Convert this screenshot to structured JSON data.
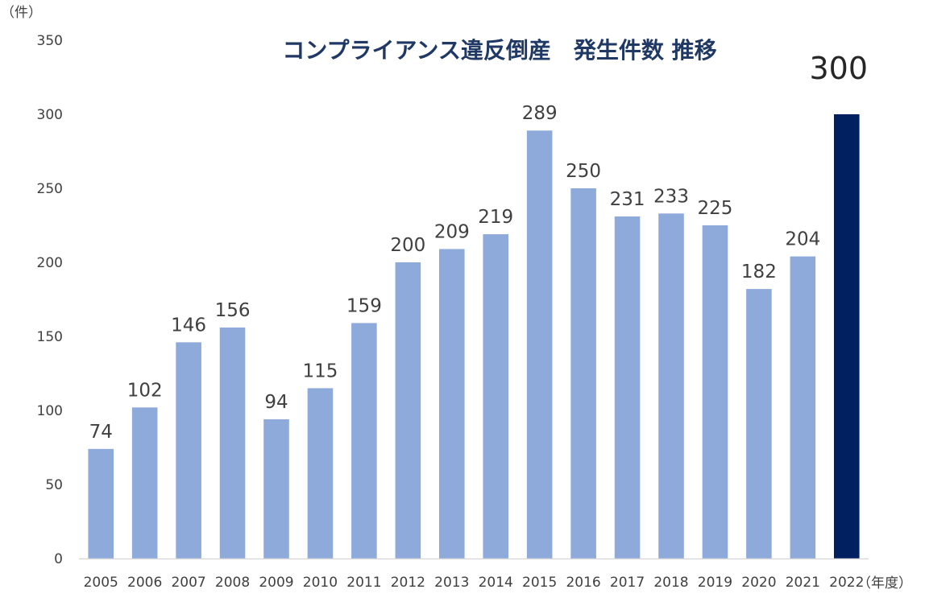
{
  "chart_data": {
    "type": "bar",
    "title": "コンプライアンス違反倒産　発生件数  推移",
    "y_unit_label": "（件）",
    "x_unit_label": "（年度）",
    "categories": [
      "2005",
      "2006",
      "2007",
      "2008",
      "2009",
      "2010",
      "2011",
      "2012",
      "2013",
      "2014",
      "2015",
      "2016",
      "2017",
      "2018",
      "2019",
      "2020",
      "2021",
      "2022"
    ],
    "series": [
      {
        "values": [
          74,
          102,
          146,
          156,
          94,
          115,
          159,
          200,
          209,
          219,
          289,
          250,
          231,
          233,
          225,
          182,
          204,
          300
        ]
      }
    ],
    "data_labels": [
      "74",
      "102",
      "146",
      "156",
      "94",
      "115",
      "159",
      "200",
      "209",
      "219",
      "289",
      "250",
      "231",
      "233",
      "225",
      "182",
      "204",
      "300"
    ],
    "highlight_index": 17,
    "ylim": [
      0,
      350
    ],
    "yticks": [
      "0",
      "50",
      "100",
      "150",
      "200",
      "250",
      "300",
      "350"
    ],
    "grid": false,
    "legend": "none",
    "colors": {
      "bar": "#8eaadb",
      "highlight_bar": "#002060",
      "title": "#1f3864",
      "text": "#404040",
      "axis": "#d9d9d9"
    }
  }
}
